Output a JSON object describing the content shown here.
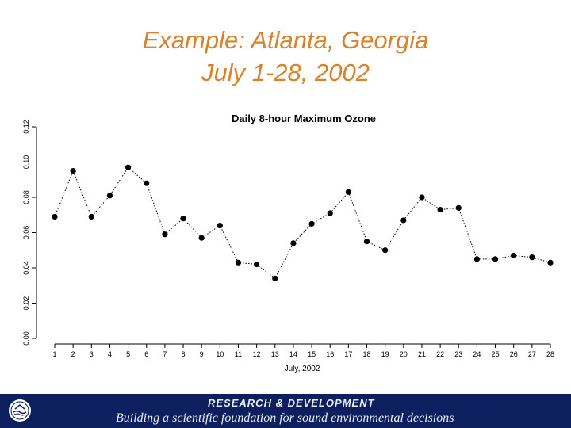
{
  "slide": {
    "title_line1": "Example: Atlanta, Georgia",
    "title_line2": "July 1-28, 2002",
    "title_color": "#d9822b"
  },
  "footer": {
    "title": "RESEARCH & DEVELOPMENT",
    "tagline": "Building a scientific foundation for sound environmental decisions",
    "background": "#0d1f5c",
    "logo": "epa-seal-icon"
  },
  "chart_data": {
    "type": "line",
    "title": "Daily 8-hour Maximum Ozone",
    "xlabel": "July, 2002",
    "ylabel": "",
    "categories": [
      "1",
      "2",
      "3",
      "4",
      "5",
      "6",
      "7",
      "8",
      "9",
      "10",
      "11",
      "12",
      "13",
      "14",
      "15",
      "16",
      "17",
      "18",
      "19",
      "20",
      "21",
      "22",
      "23",
      "24",
      "25",
      "26",
      "27",
      "28"
    ],
    "series": [
      {
        "values": [
          0.069,
          0.095,
          0.069,
          0.081,
          0.097,
          0.088,
          0.059,
          0.068,
          0.057,
          0.064,
          0.043,
          0.042,
          0.034,
          0.054,
          0.065,
          0.071,
          0.083,
          0.055,
          0.05,
          0.067,
          0.08,
          0.073,
          0.074,
          0.045,
          0.045,
          0.047,
          0.046,
          0.043
        ]
      }
    ],
    "yticks": [
      "0.00",
      "0.02",
      "0.04",
      "0.06",
      "0.08",
      "0.10",
      "0.12"
    ],
    "ylim": [
      0,
      0.12
    ],
    "line_style": "dotted",
    "marker": "filled-circle",
    "grid": false
  }
}
